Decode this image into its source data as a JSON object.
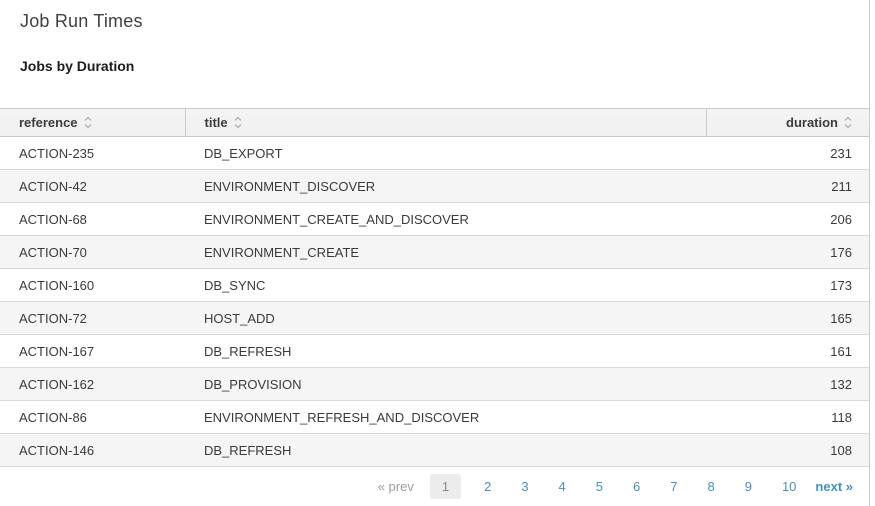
{
  "page": {
    "title": "Job Run Times",
    "subtitle": "Jobs by Duration"
  },
  "table": {
    "columns": [
      {
        "label": "reference",
        "align": "left",
        "sortable": true
      },
      {
        "label": "title",
        "align": "left",
        "sortable": true
      },
      {
        "label": "duration",
        "align": "right",
        "sortable": true
      }
    ],
    "rows": [
      [
        "ACTION-235",
        "DB_EXPORT",
        "231"
      ],
      [
        "ACTION-42",
        "ENVIRONMENT_DISCOVER",
        "211"
      ],
      [
        "ACTION-68",
        "ENVIRONMENT_CREATE_AND_DISCOVER",
        "206"
      ],
      [
        "ACTION-70",
        "ENVIRONMENT_CREATE",
        "176"
      ],
      [
        "ACTION-160",
        "DB_SYNC",
        "173"
      ],
      [
        "ACTION-72",
        "HOST_ADD",
        "165"
      ],
      [
        "ACTION-167",
        "DB_REFRESH",
        "161"
      ],
      [
        "ACTION-162",
        "DB_PROVISION",
        "132"
      ],
      [
        "ACTION-86",
        "ENVIRONMENT_REFRESH_AND_DISCOVER",
        "118"
      ],
      [
        "ACTION-146",
        "DB_REFRESH",
        "108"
      ]
    ]
  },
  "pagination": {
    "prev_label": "« prev",
    "next_label": "next »",
    "current_page": "1",
    "pages": [
      "1",
      "2",
      "3",
      "4",
      "5",
      "6",
      "7",
      "8",
      "9",
      "10"
    ]
  },
  "colors": {
    "link_blue": "#4292c8",
    "text_dark": "#3a3a3a",
    "header_bg": "#f2f2f2",
    "stripe_bg": "#f5f5f5"
  }
}
